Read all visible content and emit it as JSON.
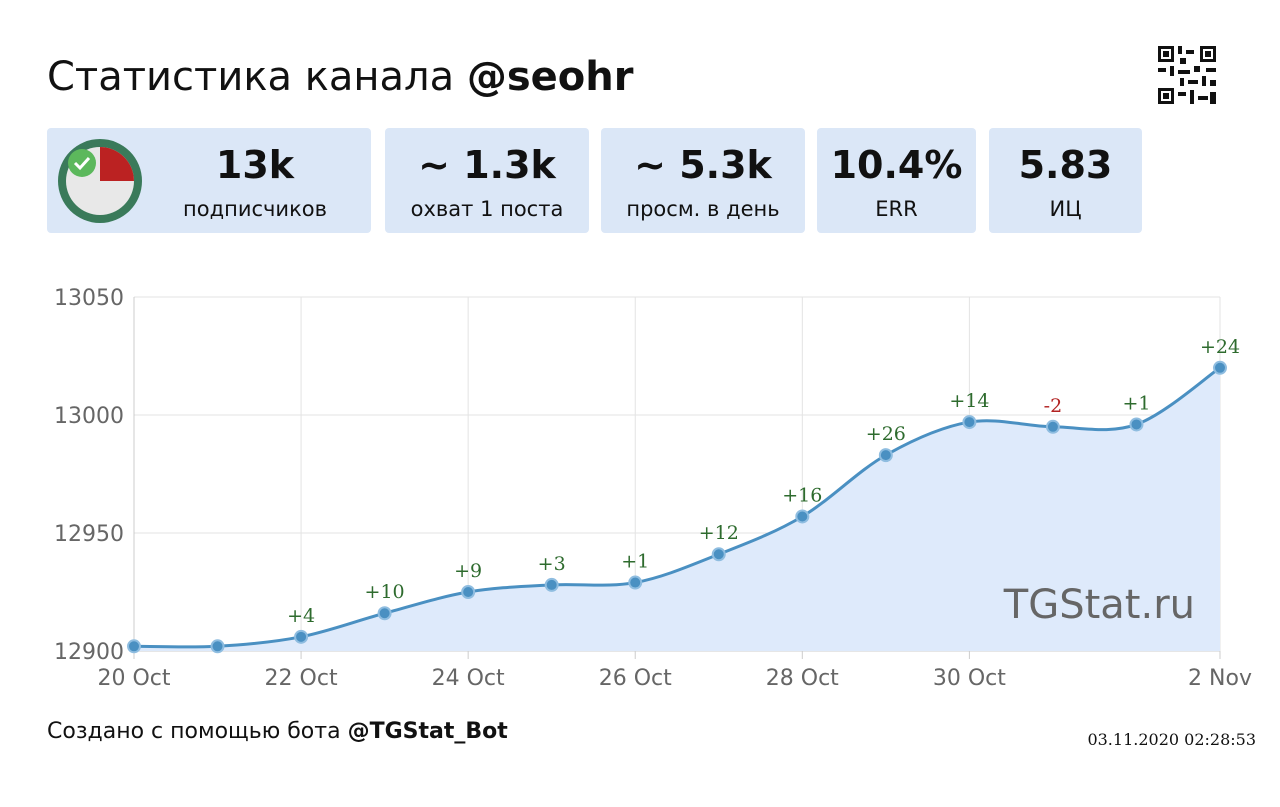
{
  "header": {
    "title": "Статистика канала",
    "channel": "@seohr"
  },
  "stats": [
    {
      "value": "13k",
      "label": "подписчиков"
    },
    {
      "value": "~ 1.3k",
      "label": "охват 1 поста"
    },
    {
      "value": "~ 5.3k",
      "label": "просм. в день"
    },
    {
      "value": "10.4%",
      "label": "ERR"
    },
    {
      "value": "5.83",
      "label": "ИЦ"
    }
  ],
  "chart_data": {
    "type": "line",
    "categories": [
      "20 Oct",
      null,
      "22 Oct",
      null,
      "24 Oct",
      null,
      "26 Oct",
      null,
      "28 Oct",
      null,
      "30 Oct",
      null,
      null,
      "2 Nov"
    ],
    "values": [
      12902,
      12902,
      12906,
      12916,
      12925,
      12928,
      12929,
      12941,
      12957,
      12983,
      12997,
      12995,
      12996,
      13020
    ],
    "changes": [
      null,
      null,
      "+4",
      "+10",
      "+9",
      "+3",
      "+1",
      "+12",
      "+16",
      "+26",
      "+14",
      "-2",
      "+1",
      "+24"
    ],
    "color": "#4a90c2",
    "fill_color": "#deeafb",
    "ylim": [
      12900,
      13050
    ],
    "yticks": [
      12900,
      12950,
      13000,
      13050
    ],
    "grid": true,
    "watermark": "TGStat.ru"
  },
  "footer": {
    "created_by": "Создано с помощью бота",
    "bot": "@TGStat_Bot",
    "timestamp": "03.11.2020 02:28:53"
  }
}
